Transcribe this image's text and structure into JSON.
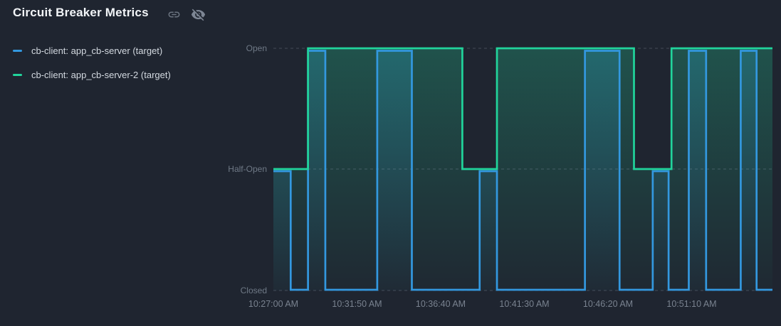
{
  "header": {
    "title": "Circuit Breaker Metrics"
  },
  "legend": {
    "items": [
      {
        "label": "cb-client: app_cb-server (target)",
        "color": "#3398DF"
      },
      {
        "label": "cb-client: app_cb-server-2 (target)",
        "color": "#21D49B"
      }
    ]
  },
  "chart_data": {
    "type": "line",
    "subtype": "step-after state timeline",
    "title": "Circuit Breaker Metrics",
    "xlabel": "",
    "ylabel": "",
    "y_categories": [
      "Closed",
      "Half-Open",
      "Open"
    ],
    "state_values": {
      "Closed": 0,
      "Half-Open": 1,
      "Open": 2
    },
    "x_ticks": [
      "10:27:00 AM",
      "10:31:50 AM",
      "10:36:40 AM",
      "10:41:30 AM",
      "10:46:20 AM",
      "10:51:10 AM"
    ],
    "x_tick_seconds": [
      0,
      290,
      580,
      870,
      1160,
      1450
    ],
    "x_range_seconds": [
      0,
      1730
    ],
    "x_start_label": "10:27:00 AM",
    "grid": "horizontal-dashed",
    "legend_position": "top-left",
    "series": [
      {
        "name": "cb-client: app_cb-server (target)",
        "color": "#3398DF",
        "points_t_state": [
          [
            0,
            1
          ],
          [
            60,
            0
          ],
          [
            120,
            2
          ],
          [
            180,
            0
          ],
          [
            360,
            2
          ],
          [
            480,
            0
          ],
          [
            715,
            1
          ],
          [
            775,
            0
          ],
          [
            1080,
            2
          ],
          [
            1200,
            0
          ],
          [
            1315,
            1
          ],
          [
            1370,
            0
          ],
          [
            1440,
            2
          ],
          [
            1500,
            0
          ],
          [
            1620,
            2
          ],
          [
            1675,
            0
          ]
        ]
      },
      {
        "name": "cb-client: app_cb-server-2 (target)",
        "color": "#21D49B",
        "points_t_state": [
          [
            0,
            1
          ],
          [
            120,
            2
          ],
          [
            655,
            1
          ],
          [
            775,
            2
          ],
          [
            1250,
            1
          ],
          [
            1380,
            2
          ]
        ]
      }
    ]
  }
}
